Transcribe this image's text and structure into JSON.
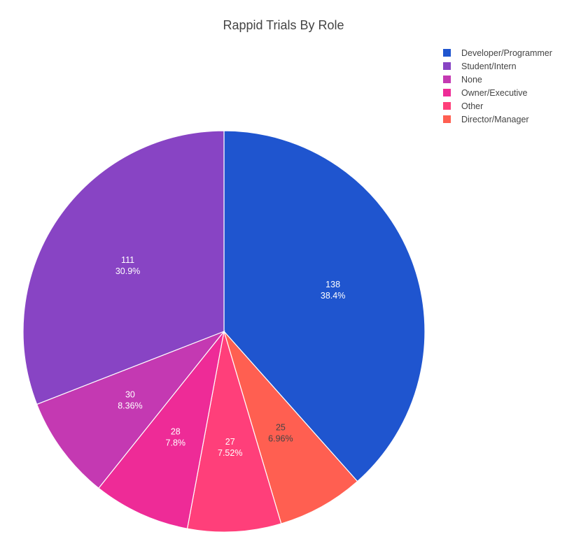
{
  "chart_data": {
    "type": "pie",
    "title": "Rappid Trials By Role",
    "direction": "clockwise",
    "start_angle": "12 o'clock",
    "slices": [
      {
        "label": "Developer/Programmer",
        "value": 138,
        "percent": "38.4%",
        "color": "#1f55cf"
      },
      {
        "label": "Director/Manager",
        "value": 25,
        "percent": "6.96%",
        "color": "#ff5f51"
      },
      {
        "label": "Other",
        "value": 27,
        "percent": "7.52%",
        "color": "#ff3f7a"
      },
      {
        "label": "Owner/Executive",
        "value": 28,
        "percent": "7.8%",
        "color": "#ee2b97"
      },
      {
        "label": "None",
        "value": 30,
        "percent": "8.36%",
        "color": "#c439b2"
      },
      {
        "label": "Student/Intern",
        "value": 111,
        "percent": "30.9%",
        "color": "#8844c4"
      }
    ],
    "legend": {
      "placement": "top-right",
      "order": [
        "Developer/Programmer",
        "Student/Intern",
        "None",
        "Owner/Executive",
        "Other",
        "Director/Manager"
      ]
    }
  }
}
